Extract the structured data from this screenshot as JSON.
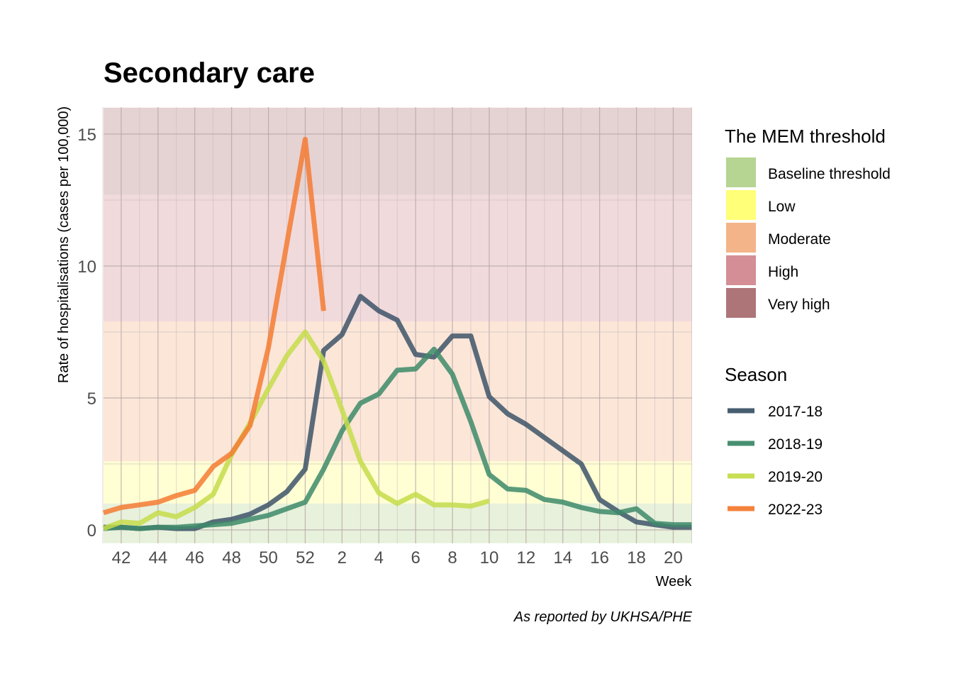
{
  "chart_data": {
    "type": "line",
    "title": "Secondary care",
    "xlabel": "Week",
    "ylabel": "Rate of hospitalisations (cases per 100,000)",
    "caption": "As reported by UKHSA/PHE",
    "x_tick_labels": [
      "42",
      "44",
      "46",
      "48",
      "50",
      "52",
      "2",
      "4",
      "6",
      "8",
      "10",
      "12",
      "14",
      "16",
      "18",
      "20"
    ],
    "y_ticks": [
      0,
      5,
      10,
      15
    ],
    "ylim": [
      -0.5,
      16
    ],
    "week_order": [
      41,
      42,
      43,
      44,
      45,
      46,
      47,
      48,
      49,
      50,
      51,
      52,
      1,
      2,
      3,
      4,
      5,
      6,
      7,
      8,
      9,
      10,
      11,
      12,
      13,
      14,
      15,
      16,
      17,
      18,
      19,
      20,
      21
    ],
    "grid": true,
    "thresholds": {
      "title": "The MEM threshold",
      "bands": [
        {
          "name": "Baseline threshold",
          "from": -0.5,
          "to": 1.0,
          "color": "#a9cc7f"
        },
        {
          "name": "Low",
          "from": 1.0,
          "to": 2.6,
          "color": "#ffff60"
        },
        {
          "name": "Moderate",
          "from": 2.6,
          "to": 7.9,
          "color": "#f2a774"
        },
        {
          "name": "High",
          "from": 7.9,
          "to": 12.7,
          "color": "#cc7a83"
        },
        {
          "name": "Very high",
          "from": 12.7,
          "to": 16,
          "color": "#a05d62"
        }
      ]
    },
    "legend_title": "Season",
    "legend_position": "right",
    "series": [
      {
        "name": "2017-18",
        "color": "#3d5468",
        "weeks": [
          41,
          42,
          43,
          44,
          45,
          46,
          47,
          48,
          49,
          50,
          51,
          52,
          1,
          2,
          3,
          4,
          5,
          6,
          7,
          8,
          9,
          10,
          11,
          12,
          13,
          14,
          15,
          16,
          17,
          18,
          19,
          20,
          21
        ],
        "values": [
          0.1,
          0.1,
          0.05,
          0.1,
          0.05,
          0.05,
          0.3,
          0.4,
          0.6,
          0.95,
          1.45,
          2.3,
          6.8,
          7.4,
          8.85,
          8.3,
          7.95,
          6.65,
          6.55,
          7.35,
          7.35,
          5.05,
          4.4,
          4.0,
          3.5,
          3.0,
          2.5,
          1.15,
          0.7,
          0.3,
          0.2,
          0.1,
          0.1
        ]
      },
      {
        "name": "2018-19",
        "color": "#3d8a6a",
        "weeks": [
          41,
          42,
          43,
          44,
          45,
          46,
          47,
          48,
          49,
          50,
          51,
          52,
          1,
          2,
          3,
          4,
          5,
          6,
          7,
          8,
          9,
          10,
          11,
          12,
          13,
          14,
          15,
          16,
          17,
          18,
          19,
          20,
          21
        ],
        "values": [
          0.05,
          0.1,
          0.05,
          0.1,
          0.1,
          0.15,
          0.2,
          0.25,
          0.4,
          0.55,
          0.8,
          1.05,
          2.3,
          3.75,
          4.8,
          5.15,
          6.05,
          6.1,
          6.85,
          5.9,
          4.1,
          2.1,
          1.55,
          1.5,
          1.15,
          1.05,
          0.85,
          0.7,
          0.65,
          0.8,
          0.25,
          0.2,
          0.2
        ]
      },
      {
        "name": "2019-20",
        "color": "#c5dc4a",
        "weeks": [
          41,
          42,
          43,
          44,
          45,
          46,
          47,
          48,
          49,
          50,
          51,
          52,
          1,
          2,
          3,
          4,
          5,
          6,
          7,
          8,
          9,
          10
        ],
        "values": [
          0.05,
          0.3,
          0.25,
          0.65,
          0.5,
          0.85,
          1.35,
          2.85,
          4.05,
          5.35,
          6.6,
          7.5,
          6.4,
          4.55,
          2.6,
          1.4,
          1.0,
          1.35,
          0.95,
          0.95,
          0.9,
          1.1
        ]
      },
      {
        "name": "2022-23",
        "color": "#f47b32",
        "weeks": [
          41,
          42,
          43,
          44,
          45,
          46,
          47,
          48,
          49,
          50,
          51,
          52,
          1
        ],
        "values": [
          0.65,
          0.85,
          0.95,
          1.05,
          1.3,
          1.5,
          2.4,
          2.9,
          3.95,
          6.9,
          10.85,
          14.8,
          8.3
        ]
      }
    ]
  }
}
